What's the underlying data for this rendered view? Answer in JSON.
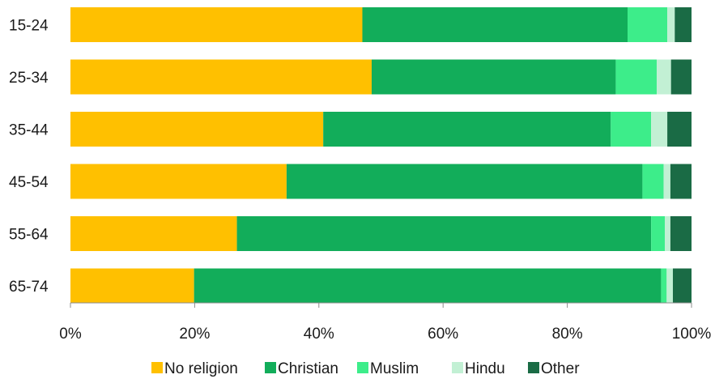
{
  "chart_data": {
    "type": "bar",
    "orientation": "horizontal",
    "stacked": true,
    "categories": [
      "15-24",
      "25-34",
      "35-44",
      "45-54",
      "55-64",
      "65-74"
    ],
    "series": [
      {
        "name": "No religion",
        "color": "#ffc000",
        "values": [
          47.0,
          48.5,
          40.7,
          34.8,
          26.8,
          19.9
        ]
      },
      {
        "name": "Christian",
        "color": "#12ad5a",
        "values": [
          42.7,
          39.3,
          46.3,
          57.3,
          66.7,
          75.2
        ]
      },
      {
        "name": "Muslim",
        "color": "#3ded8a",
        "values": [
          6.4,
          6.6,
          6.5,
          3.4,
          2.2,
          0.9
        ]
      },
      {
        "name": "Hindu",
        "color": "#c2f0d4",
        "values": [
          1.2,
          2.3,
          2.6,
          1.1,
          0.9,
          1.0
        ]
      },
      {
        "name": "Other",
        "color": "#1a6b45",
        "values": [
          2.7,
          3.3,
          3.9,
          3.4,
          3.4,
          3.0
        ]
      }
    ],
    "xlim": [
      0,
      100
    ],
    "xticks": [
      "0%",
      "20%",
      "40%",
      "60%",
      "80%",
      "100%"
    ],
    "grid": false,
    "legend_position": "bottom"
  }
}
